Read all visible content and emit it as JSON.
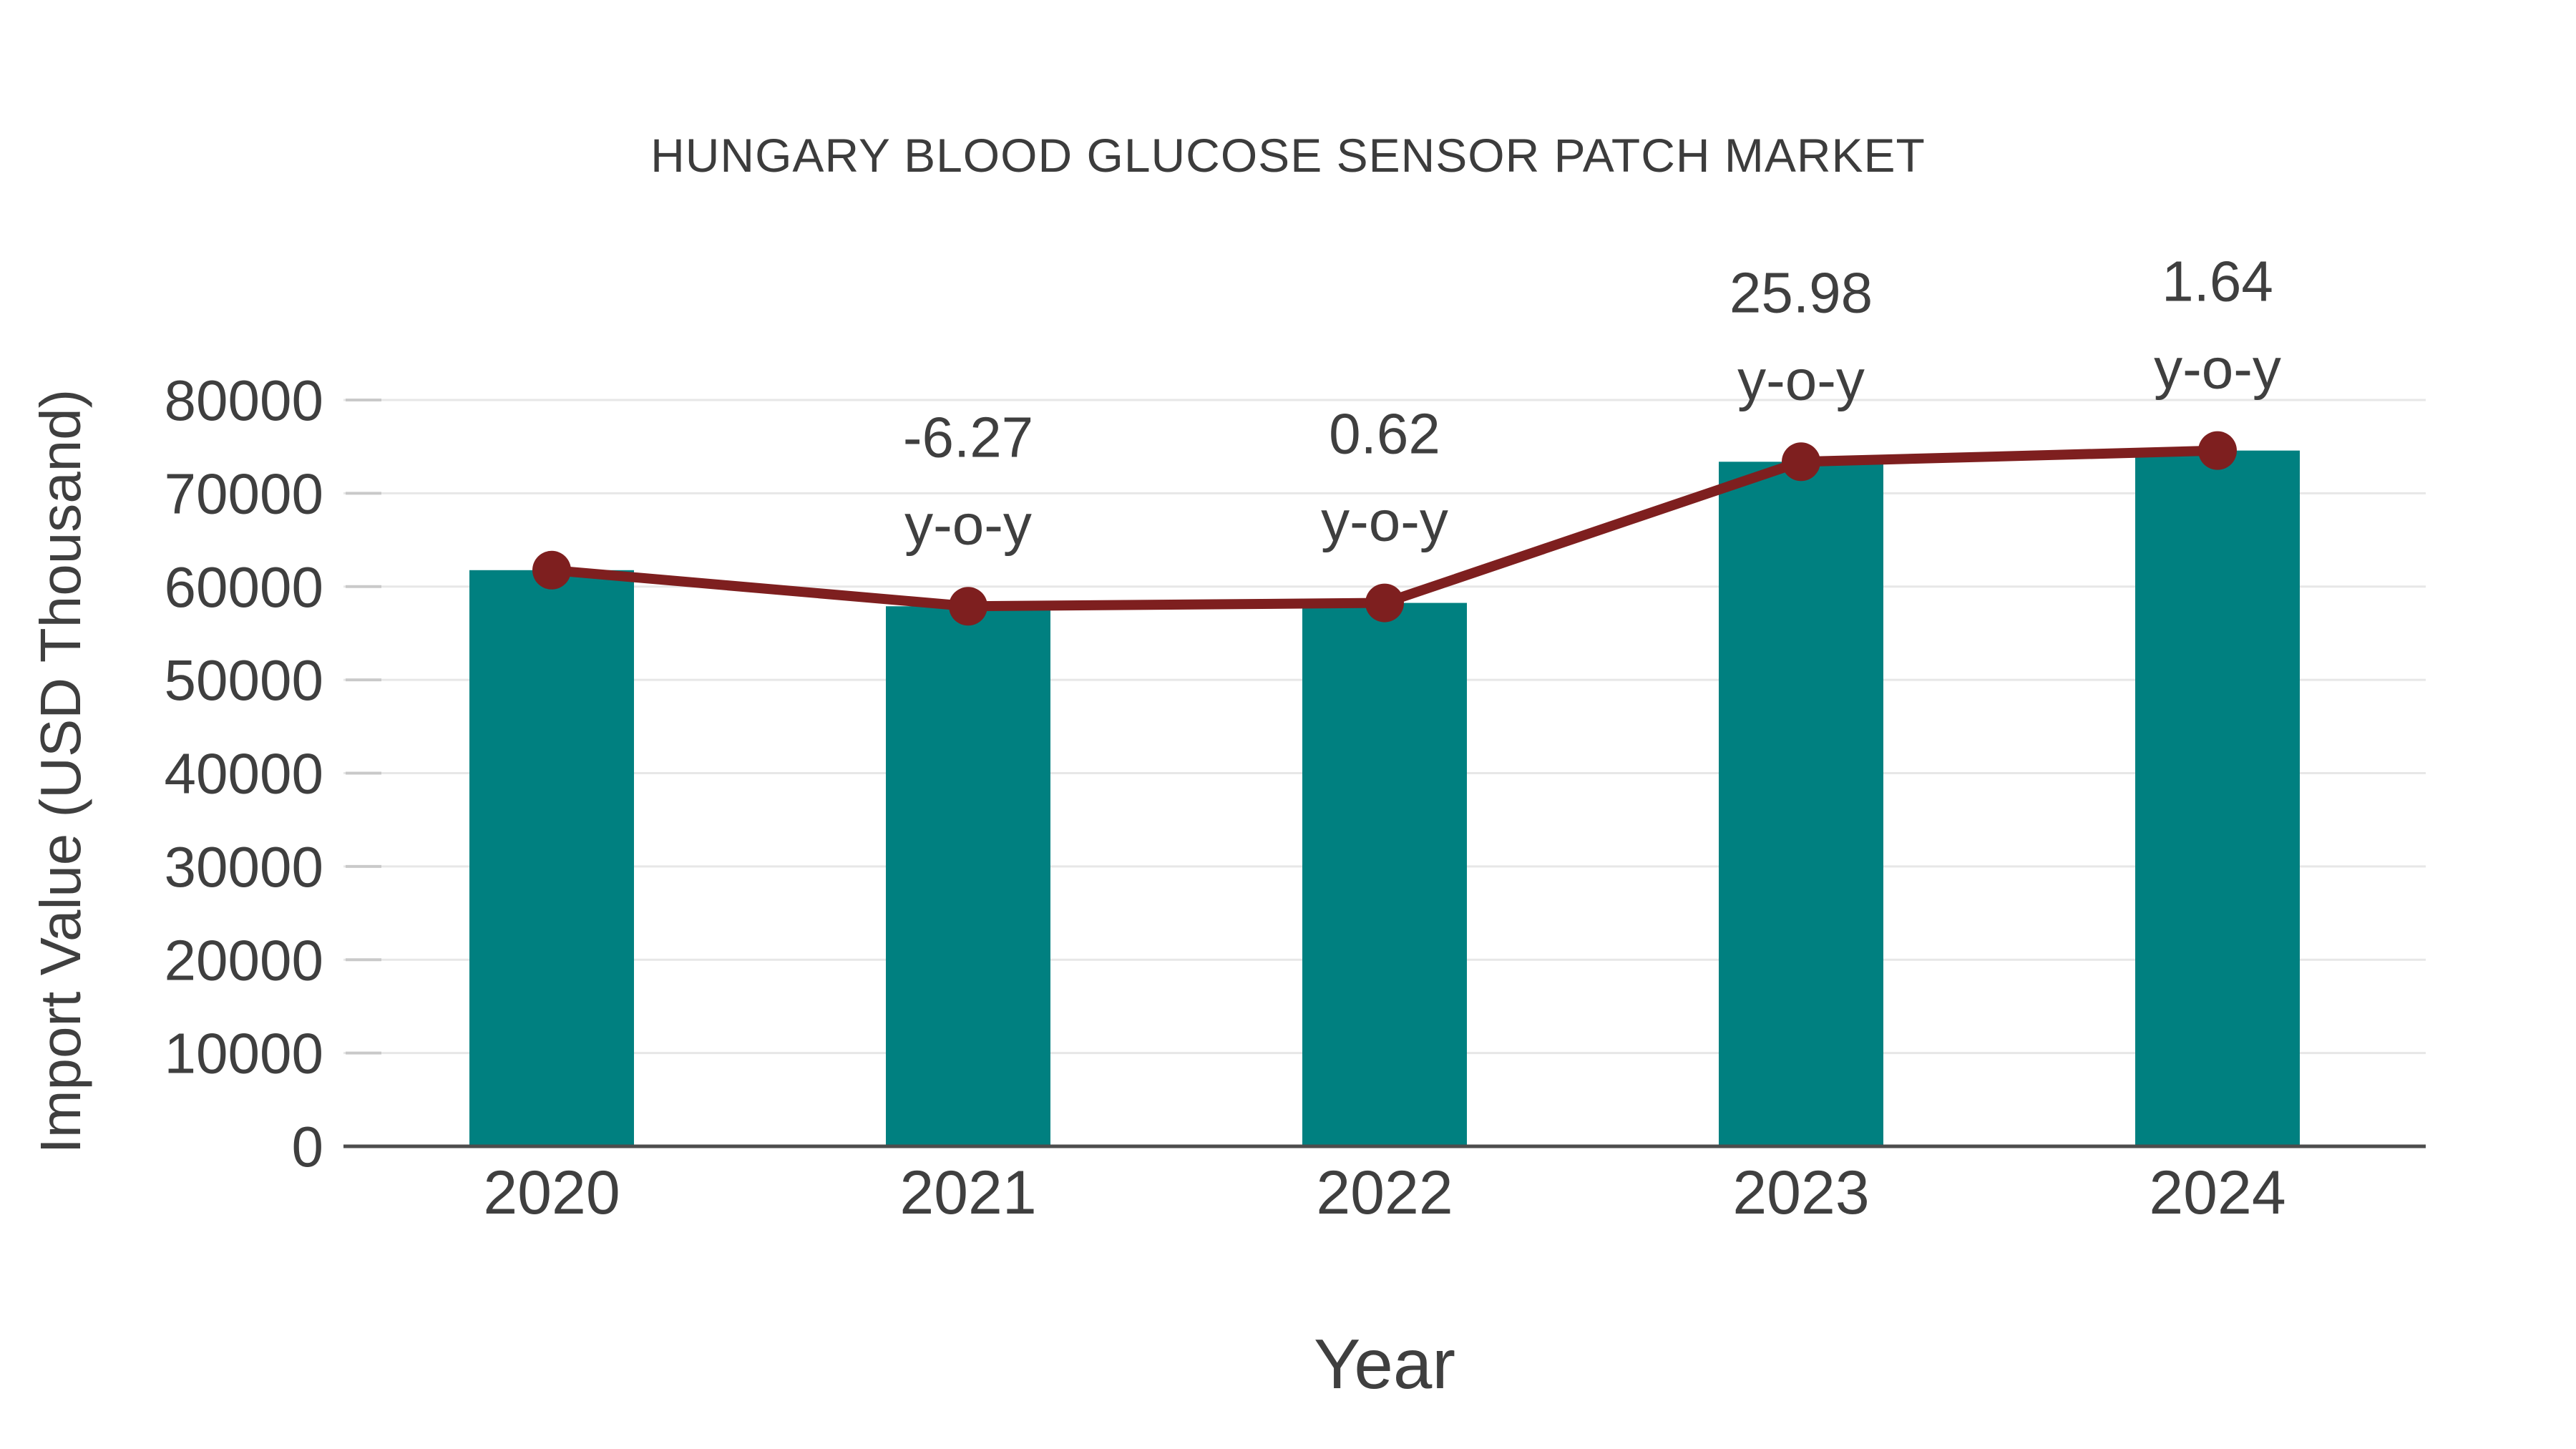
{
  "page": {
    "background": "#ffffff"
  },
  "style": {
    "text_color": "#3f3f3f",
    "title_color": "#3c3c3c",
    "axis_line_color": "#4d4d4d",
    "gridline_color": "#e7e7e7",
    "tick_mark_color": "#c9c9c9",
    "bar_color": "#008080",
    "line_color": "#7e1f1f"
  },
  "chart_data": {
    "type": "bar",
    "title": "HUNGARY BLOOD GLUCOSE SENSOR PATCH MARKET",
    "xlabel": "Year",
    "ylabel": "Import Value (USD Thousand)",
    "categories": [
      "2020",
      "2021",
      "2022",
      "2023",
      "2024"
    ],
    "series": [
      {
        "name": "Import Value (USD Thousand)",
        "type": "bar",
        "color": "#008080",
        "values": [
          61760,
          57890,
          58250,
          73380,
          74580
        ]
      },
      {
        "name": "Import Value trend",
        "type": "line",
        "color": "#7e1f1f",
        "values": [
          61760,
          57890,
          58250,
          73380,
          74580
        ]
      }
    ],
    "annotations": [
      {
        "category": "2021",
        "value_label": "-6.27",
        "unit_label": "y-o-y"
      },
      {
        "category": "2022",
        "value_label": "0.62",
        "unit_label": "y-o-y"
      },
      {
        "category": "2023",
        "value_label": "25.98",
        "unit_label": "y-o-y"
      },
      {
        "category": "2024",
        "value_label": "1.64",
        "unit_label": "y-o-y"
      }
    ],
    "ylim": [
      0,
      80000
    ],
    "yticks": [
      0,
      10000,
      20000,
      30000,
      40000,
      50000,
      60000,
      70000,
      80000
    ],
    "grid": "horizontal",
    "legend_position": "none"
  }
}
